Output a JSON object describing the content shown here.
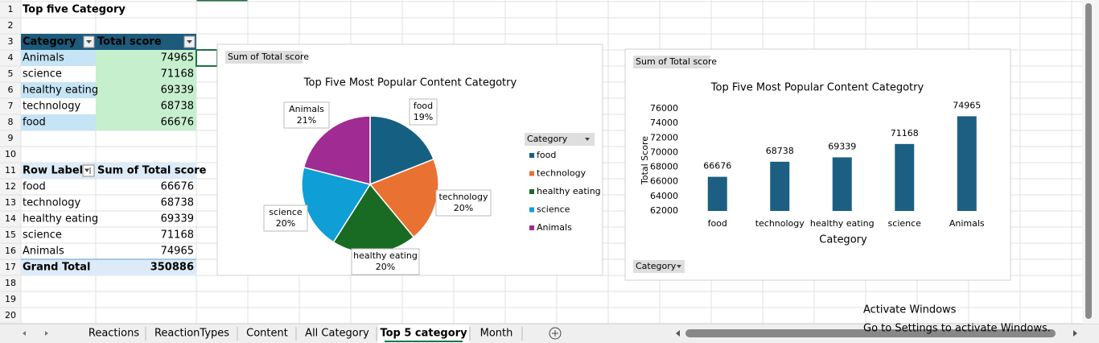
{
  "sheet": {
    "row_numbers": [
      1,
      2,
      3,
      4,
      5,
      6,
      7,
      8,
      9,
      10,
      11,
      12,
      13,
      14,
      15,
      16,
      17,
      18,
      19,
      20
    ],
    "title": "Top five Category",
    "table": {
      "headers": [
        "Category",
        "Total score"
      ],
      "rows": [
        [
          "Animals",
          74965
        ],
        [
          "science",
          71168
        ],
        [
          "healthy eating",
          69339
        ],
        [
          "technology",
          68738
        ],
        [
          "food",
          66676
        ]
      ]
    },
    "pivot": {
      "headers": [
        "Row Labels",
        "Sum of Total score"
      ],
      "rows": [
        [
          "food",
          66676
        ],
        [
          "technology",
          68738
        ],
        [
          "healthy eating",
          69339
        ],
        [
          "science",
          71168
        ],
        [
          "Animals",
          74965
        ]
      ],
      "total_label": "Grand Total",
      "total": 350886
    }
  },
  "pie_chart": {
    "type": "pie",
    "field_button": "Sum of Total score",
    "title": "Top Five Most Popular Content Categotry",
    "categories": [
      "food",
      "technology",
      "healthy eating",
      "science",
      "Animals"
    ],
    "values": [
      19,
      20,
      20,
      20,
      21
    ],
    "value_labels": [
      "19%",
      "20%",
      "20%",
      "20%",
      "21%"
    ],
    "colors": [
      "#156082",
      "#e97132",
      "#196b24",
      "#0f9ed5",
      "#a02b93"
    ],
    "legend_title": "Category"
  },
  "bar_chart": {
    "type": "bar",
    "field_button": "Sum of Total score",
    "title": "Top Five Most Popular Content Categotry",
    "categories": [
      "food",
      "technology",
      "healthy eating",
      "science",
      "Animals"
    ],
    "values": [
      66676,
      68738,
      69339,
      71168,
      74965
    ],
    "color": "#1c5f82",
    "ylim": [
      62000,
      76000
    ],
    "yticks": [
      62000,
      64000,
      66000,
      68000,
      70000,
      72000,
      74000,
      76000
    ],
    "ylabel": "Total Score",
    "xlabel": "Category",
    "filter_button": "Category"
  },
  "tabs": [
    "Reactions",
    "ReactionTypes",
    "Content",
    "All Category",
    "Top 5 category",
    "Month"
  ],
  "active_tab": 4,
  "watermark": {
    "title": "Activate Windows",
    "subtitle": "Go to Settings to activate Windows."
  }
}
